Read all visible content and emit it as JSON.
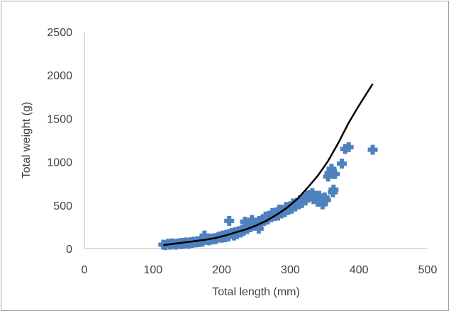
{
  "chart_data": {
    "type": "scatter",
    "title": "",
    "xlabel": "Total length (mm)",
    "ylabel": "Total weight (g)",
    "xlim": [
      0,
      500
    ],
    "ylim": [
      0,
      2500
    ],
    "x_ticks": [
      "0",
      "100",
      "200",
      "300",
      "400",
      "500"
    ],
    "y_ticks": [
      "0",
      "500",
      "1000",
      "1500",
      "2000",
      "2500"
    ],
    "grid": false,
    "legend": "none",
    "series": [
      {
        "kind": "scatter",
        "color": "#4f81bd",
        "marker": "plus",
        "points": [
          [
            115,
            45
          ],
          [
            118,
            40
          ],
          [
            122,
            55
          ],
          [
            125,
            45
          ],
          [
            128,
            60
          ],
          [
            130,
            50
          ],
          [
            133,
            45
          ],
          [
            135,
            55
          ],
          [
            138,
            60
          ],
          [
            140,
            50
          ],
          [
            142,
            65
          ],
          [
            145,
            55
          ],
          [
            148,
            70
          ],
          [
            150,
            60
          ],
          [
            152,
            55
          ],
          [
            155,
            75
          ],
          [
            157,
            65
          ],
          [
            160,
            80
          ],
          [
            162,
            70
          ],
          [
            165,
            85
          ],
          [
            167,
            75
          ],
          [
            170,
            90
          ],
          [
            172,
            80
          ],
          [
            175,
            150
          ],
          [
            176,
            100
          ],
          [
            178,
            110
          ],
          [
            180,
            100
          ],
          [
            182,
            95
          ],
          [
            185,
            115
          ],
          [
            188,
            105
          ],
          [
            190,
            120
          ],
          [
            192,
            110
          ],
          [
            195,
            130
          ],
          [
            197,
            140
          ],
          [
            200,
            125
          ],
          [
            202,
            150
          ],
          [
            205,
            130
          ],
          [
            207,
            160
          ],
          [
            210,
            140
          ],
          [
            211,
            320
          ],
          [
            212,
            170
          ],
          [
            215,
            180
          ],
          [
            218,
            150
          ],
          [
            220,
            190
          ],
          [
            222,
            165
          ],
          [
            225,
            200
          ],
          [
            228,
            185
          ],
          [
            230,
            220
          ],
          [
            232,
            205
          ],
          [
            234,
            310
          ],
          [
            235,
            240
          ],
          [
            237,
            225
          ],
          [
            240,
            260
          ],
          [
            242,
            245
          ],
          [
            244,
            330
          ],
          [
            245,
            280
          ],
          [
            247,
            265
          ],
          [
            250,
            300
          ],
          [
            252,
            285
          ],
          [
            254,
            230
          ],
          [
            255,
            320
          ],
          [
            257,
            305
          ],
          [
            260,
            340
          ],
          [
            262,
            320
          ],
          [
            264,
            370
          ],
          [
            265,
            350
          ],
          [
            267,
            335
          ],
          [
            270,
            380
          ],
          [
            272,
            360
          ],
          [
            274,
            410
          ],
          [
            275,
            390
          ],
          [
            277,
            375
          ],
          [
            280,
            400
          ],
          [
            282,
            380
          ],
          [
            284,
            450
          ],
          [
            285,
            420
          ],
          [
            287,
            405
          ],
          [
            290,
            440
          ],
          [
            292,
            420
          ],
          [
            294,
            480
          ],
          [
            295,
            460
          ],
          [
            297,
            445
          ],
          [
            300,
            480
          ],
          [
            302,
            460
          ],
          [
            304,
            520
          ],
          [
            305,
            500
          ],
          [
            307,
            485
          ],
          [
            310,
            530
          ],
          [
            312,
            510
          ],
          [
            314,
            560
          ],
          [
            315,
            540
          ],
          [
            317,
            525
          ],
          [
            320,
            580
          ],
          [
            322,
            555
          ],
          [
            324,
            610
          ],
          [
            325,
            590
          ],
          [
            328,
            620
          ],
          [
            330,
            600
          ],
          [
            332,
            640
          ],
          [
            334,
            570
          ],
          [
            335,
            610
          ],
          [
            337,
            580
          ],
          [
            340,
            540
          ],
          [
            342,
            610
          ],
          [
            345,
            560
          ],
          [
            347,
            510
          ],
          [
            350,
            590
          ],
          [
            352,
            560
          ],
          [
            355,
            830
          ],
          [
            357,
            870
          ],
          [
            360,
            920
          ],
          [
            362,
            650
          ],
          [
            363,
            680
          ],
          [
            365,
            860
          ],
          [
            375,
            980
          ],
          [
            380,
            1150
          ],
          [
            385,
            1170
          ],
          [
            420,
            1140
          ]
        ]
      },
      {
        "kind": "trendline",
        "color": "#000000",
        "points": [
          [
            115,
            40
          ],
          [
            130,
            55
          ],
          [
            145,
            70
          ],
          [
            160,
            85
          ],
          [
            175,
            100
          ],
          [
            190,
            120
          ],
          [
            205,
            150
          ],
          [
            220,
            185
          ],
          [
            235,
            220
          ],
          [
            250,
            265
          ],
          [
            265,
            320
          ],
          [
            280,
            390
          ],
          [
            295,
            470
          ],
          [
            310,
            570
          ],
          [
            325,
            700
          ],
          [
            340,
            840
          ],
          [
            355,
            1010
          ],
          [
            370,
            1220
          ],
          [
            385,
            1450
          ],
          [
            400,
            1650
          ],
          [
            420,
            1900
          ]
        ]
      }
    ]
  }
}
